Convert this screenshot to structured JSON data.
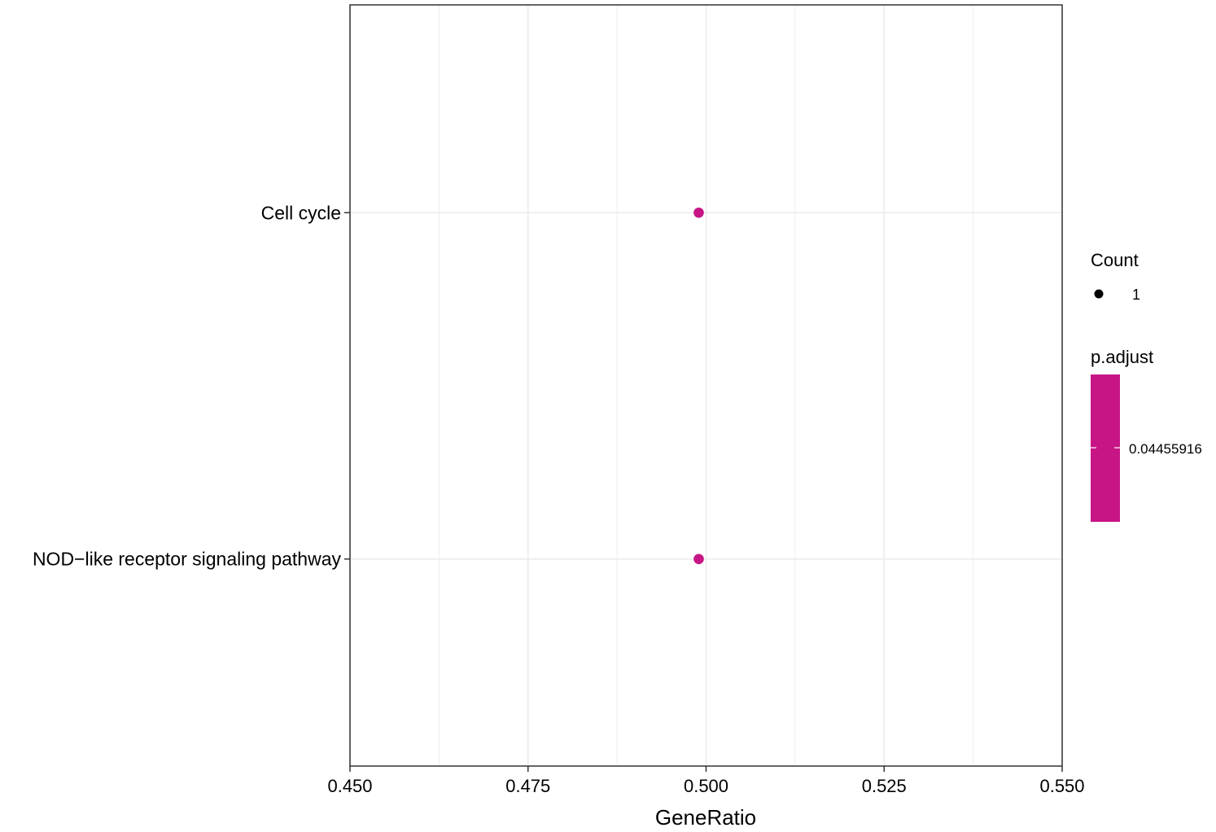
{
  "chart_data": {
    "type": "scatter",
    "xlabel": "GeneRatio",
    "ylabel": "",
    "xlim": [
      0.45,
      0.55
    ],
    "x_ticks": [
      0.45,
      0.475,
      0.5,
      0.525,
      0.55
    ],
    "x_tick_labels": [
      "0.450",
      "0.475",
      "0.500",
      "0.525",
      "0.550"
    ],
    "categories": [
      "Cell cycle",
      "NOD−like receptor signaling pathway"
    ],
    "points": [
      {
        "category": "Cell cycle",
        "x": 0.5,
        "count": 1,
        "p_adjust": 0.04455916
      },
      {
        "category": "NOD−like receptor signaling pathway",
        "x": 0.5,
        "count": 1,
        "p_adjust": 0.04455916
      }
    ],
    "grid": true,
    "legend_position": "right",
    "legend": {
      "size_title": "Count",
      "size_entries": [
        "1"
      ],
      "color_title": "p.adjust",
      "color_entries": [
        "0.04455916"
      ]
    },
    "colors": {
      "point": "#C71585",
      "colorbar": "#C71585",
      "grid": "#EBEBEB",
      "panel_border": "#333333",
      "size_key": "#000000"
    }
  }
}
